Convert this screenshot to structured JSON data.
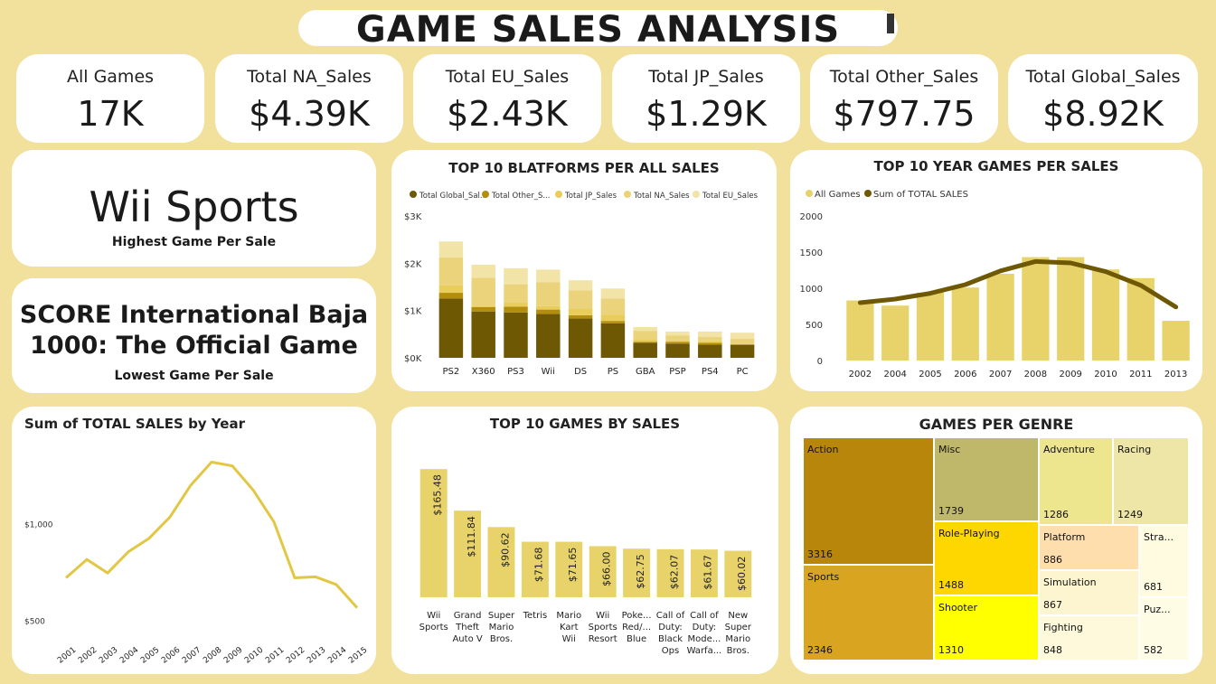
{
  "page_title": "GAME SALES ANALYSIS",
  "kpis": [
    {
      "label": "All Games",
      "value": "17K"
    },
    {
      "label": "Total NA_Sales",
      "value": "$4.39K"
    },
    {
      "label": "Total EU_Sales",
      "value": "$2.43K"
    },
    {
      "label": "Total JP_Sales",
      "value": "$1.29K"
    },
    {
      "label": "Total Other_Sales",
      "value": "$797.75"
    },
    {
      "label": "Total Global_Sales",
      "value": "$8.92K"
    }
  ],
  "highest": {
    "name": "Wii Sports",
    "caption": "Highest Game Per Sale"
  },
  "lowest": {
    "name_line1": "SCORE International Baja",
    "name_line2": "1000: The Official Game",
    "caption": "Lowest Game Per Sale"
  },
  "colors": {
    "background": "#f2e19c",
    "card": "#ffffff",
    "global": "#6e5804",
    "other": "#b38e0c",
    "jp": "#e8cd5a",
    "na": "#ead37a",
    "eu": "#f2e3a6",
    "bar": "#e8d26a",
    "line": "#6e5804",
    "year_line": "#e2c744"
  },
  "chart_data": [
    {
      "type": "bar",
      "title": "TOP 10 BLATFORMS PER ALL SALES",
      "categories": [
        "PS2",
        "X360",
        "PS3",
        "Wii",
        "DS",
        "PS",
        "GBA",
        "PSP",
        "PS4",
        "PC"
      ],
      "stacked": true,
      "legend_position": "top-left",
      "series": [
        {
          "name": "Total Global_Sal...",
          "values": [
            1255,
            980,
            960,
            930,
            830,
            730,
            320,
            300,
            280,
            270
          ]
        },
        {
          "name": "Total Other_S...",
          "values": [
            120,
            90,
            120,
            90,
            70,
            50,
            20,
            35,
            35,
            20
          ]
        },
        {
          "name": "Total JP_Sales",
          "values": [
            155,
            20,
            85,
            75,
            140,
            135,
            50,
            30,
            30,
            10
          ]
        },
        {
          "name": "Total NA_Sales",
          "values": [
            590,
            600,
            390,
            500,
            390,
            340,
            180,
            110,
            100,
            100
          ]
        },
        {
          "name": "Total EU_Sales",
          "values": [
            340,
            280,
            340,
            270,
            210,
            210,
            80,
            80,
            110,
            130
          ]
        }
      ],
      "y_ticks": [
        "$0K",
        "$1K",
        "$2K",
        "$3K"
      ],
      "ylim": [
        0,
        3000
      ]
    },
    {
      "type": "bar+line",
      "title": "TOP 10 YEAR GAMES PER SALES",
      "categories": [
        "2002",
        "2004",
        "2005",
        "2006",
        "2007",
        "2008",
        "2009",
        "2010",
        "2011",
        "2013"
      ],
      "legend_position": "top-left",
      "series": [
        {
          "name": "All Games",
          "type": "bar",
          "values": [
            830,
            760,
            940,
            1010,
            1200,
            1430,
            1430,
            1260,
            1140,
            550
          ]
        },
        {
          "name": "Sum of TOTAL SALES",
          "type": "line",
          "values": [
            800,
            850,
            930,
            1050,
            1240,
            1370,
            1350,
            1230,
            1040,
            740
          ]
        }
      ],
      "y_ticks": [
        "0",
        "500",
        "1000",
        "1500",
        "2000"
      ],
      "ylim": [
        0,
        2000
      ]
    },
    {
      "type": "line",
      "title": "Sum of TOTAL SALES by Year",
      "x": [
        "2001",
        "2002",
        "2003",
        "2004",
        "2005",
        "2006",
        "2007",
        "2008",
        "2009",
        "2010",
        "2011",
        "2012",
        "2013",
        "2014",
        "2015"
      ],
      "series": [
        {
          "values": [
            720,
            815,
            745,
            855,
            925,
            1035,
            1200,
            1320,
            1300,
            1175,
            1010,
            720,
            725,
            685,
            565
          ]
        }
      ],
      "y_ticks": [
        {
          "label": "$500",
          "value": 500
        },
        {
          "label": "$1,000",
          "value": 1000
        }
      ],
      "ylim": [
        460,
        1420
      ]
    },
    {
      "type": "bar",
      "title": "TOP 10 GAMES BY SALES",
      "categories": [
        [
          "Wii",
          "Sports"
        ],
        [
          "Grand",
          "Theft",
          "Auto V"
        ],
        [
          "Super",
          "Mario",
          "Bros."
        ],
        [
          "Tetris"
        ],
        [
          "Mario",
          "Kart",
          "Wii"
        ],
        [
          "Wii",
          "Sports",
          "Resort"
        ],
        [
          "Poke...",
          "Red/...",
          "Blue"
        ],
        [
          "Call of",
          "Duty:",
          "Black",
          "Ops"
        ],
        [
          "Call of",
          "Duty:",
          "Mode...",
          "Warfa..."
        ],
        [
          "New",
          "Super",
          "Mario",
          "Bros."
        ]
      ],
      "values": [
        165.48,
        111.84,
        90.62,
        71.68,
        71.65,
        66.0,
        62.75,
        62.07,
        61.67,
        60.02
      ],
      "labels": [
        "$165.48",
        "$111.84",
        "$90.62",
        "$71.68",
        "$71.65",
        "$66.00",
        "$62.75",
        "$62.07",
        "$61.67",
        "$60.02"
      ],
      "ylim": [
        0,
        175
      ]
    },
    {
      "type": "treemap",
      "title": "GAMES PER GENRE",
      "items": [
        {
          "name": "Action",
          "value": "3316",
          "color": "#b8860b"
        },
        {
          "name": "Sports",
          "value": "2346",
          "color": "#d9a521"
        },
        {
          "name": "Misc",
          "value": "1739",
          "color": "#bfb86a"
        },
        {
          "name": "Role-Playing",
          "value": "1488",
          "color": "#ffd700"
        },
        {
          "name": "Shooter",
          "value": "1310",
          "color": "#ffff00"
        },
        {
          "name": "Adventure",
          "value": "1286",
          "color": "#eee68f"
        },
        {
          "name": "Racing",
          "value": "1249",
          "color": "#ede6a6"
        },
        {
          "name": "Platform",
          "value": "886",
          "color": "#ffdead"
        },
        {
          "name": "Simulation",
          "value": "867",
          "color": "#fdf5d0"
        },
        {
          "name": "Fighting",
          "value": "848",
          "color": "#fef9da"
        },
        {
          "name": "Stra...",
          "value": "681",
          "color": "#fefbe0"
        },
        {
          "name": "Puz...",
          "value": "582",
          "color": "#fffce6"
        }
      ]
    }
  ]
}
